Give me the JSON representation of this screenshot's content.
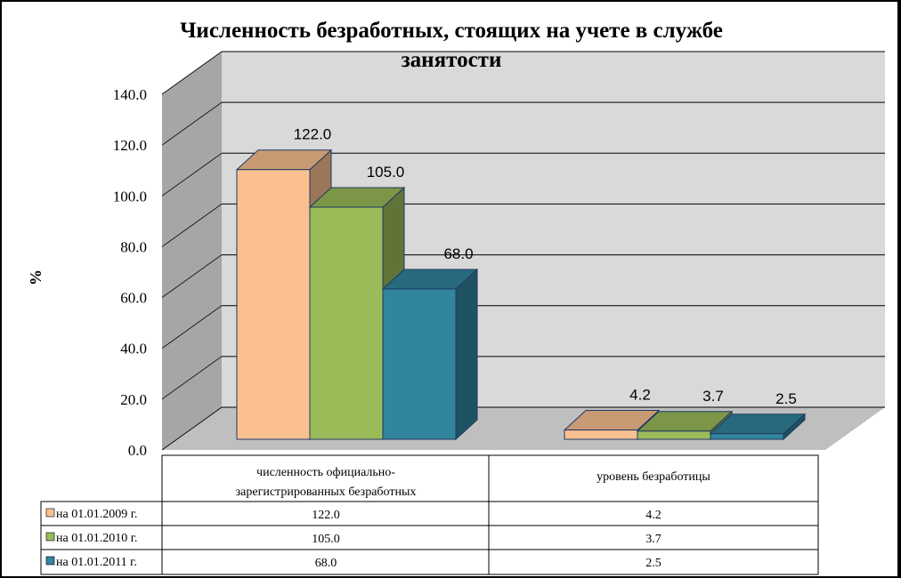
{
  "chart_data": {
    "type": "bar",
    "title_line1": "Численность безработных, стоящих на учете в службе",
    "title_line2": "занятости",
    "ylabel": "%",
    "ylim": [
      0,
      140
    ],
    "yticks": [
      "0.0",
      "20.0",
      "40.0",
      "60.0",
      "80.0",
      "100.0",
      "120.0",
      "140.0"
    ],
    "grid": true,
    "legend_placement": "data-table",
    "categories": [
      "численность официально-зарегистрированных безработных",
      "уровень безработицы"
    ],
    "series": [
      {
        "name": "на 01.01.2009 г.",
        "values": [
          122.0,
          4.2
        ],
        "labels": [
          "122.0",
          "4.2"
        ],
        "color": "#FAC090"
      },
      {
        "name": "на 01.01.2010 г.",
        "values": [
          105.0,
          3.7
        ],
        "labels": [
          "105.0",
          "3.7"
        ],
        "color": "#9BBB59"
      },
      {
        "name": "на 01.01.2011 г.",
        "values": [
          68.0,
          2.5
        ],
        "labels": [
          "68.0",
          "2.5"
        ],
        "color": "#31859C"
      }
    ]
  }
}
